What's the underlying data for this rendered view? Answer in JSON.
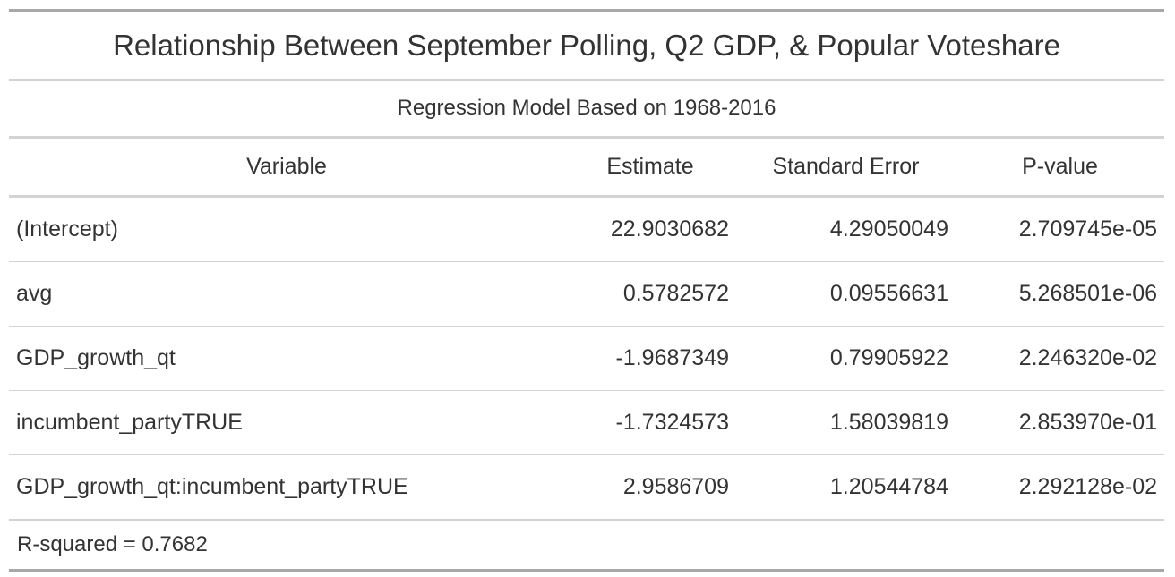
{
  "table": {
    "title": "Relationship Between September Polling, Q2 GDP, & Popular Voteshare",
    "subtitle": "Regression Model Based on 1968-2016",
    "columns": [
      "Variable",
      "Estimate",
      "Standard Error",
      "P-value"
    ],
    "rows": [
      {
        "variable": "(Intercept)",
        "estimate": "22.9030682",
        "std_error": "4.29050049",
        "p_value": "2.709745e-05"
      },
      {
        "variable": "avg",
        "estimate": "0.5782572",
        "std_error": "0.09556631",
        "p_value": "5.268501e-06"
      },
      {
        "variable": "GDP_growth_qt",
        "estimate": "-1.9687349",
        "std_error": "0.79905922",
        "p_value": "2.246320e-02"
      },
      {
        "variable": "incumbent_partyTRUE",
        "estimate": "-1.7324573",
        "std_error": "1.58039819",
        "p_value": "2.853970e-01"
      },
      {
        "variable": "GDP_growth_qt:incumbent_partyTRUE",
        "estimate": "2.9586709",
        "std_error": "1.20544784",
        "p_value": "2.292128e-02"
      }
    ],
    "source_note": "R-squared = 0.7682"
  }
}
